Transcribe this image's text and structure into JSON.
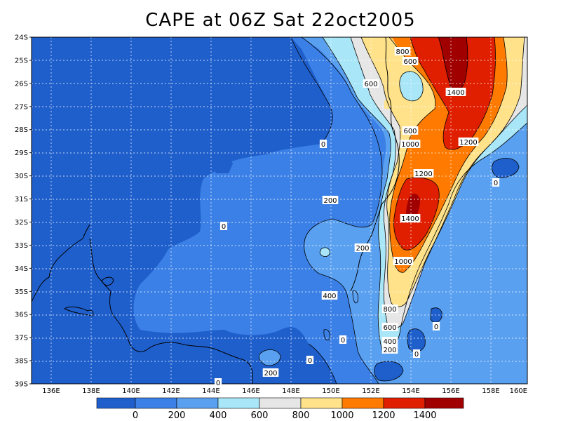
{
  "title": "CAPE at 06Z Sat 22oct2005",
  "colors": {
    "lvl0": "#1f5fcc",
    "lvl1": "#3b80e6",
    "lvl2": "#5aa0f0",
    "lvl3": "#a8e6f8",
    "lvl4": "#e6e6e6",
    "lvl5": "#ffe28a",
    "lvl6": "#ff7a00",
    "lvl7": "#e01e00",
    "lvl8": "#a00000"
  },
  "lat_ticks": [
    "24S",
    "25S",
    "26S",
    "27S",
    "28S",
    "29S",
    "30S",
    "31S",
    "32S",
    "33S",
    "34S",
    "35S",
    "36S",
    "37S",
    "38S",
    "39S"
  ],
  "lon_ticks": [
    "136E",
    "138E",
    "140E",
    "142E",
    "144E",
    "146E",
    "148E",
    "150E",
    "152E",
    "154E",
    "156E",
    "158E",
    "160E"
  ],
  "contour_labels": [
    {
      "text": "800"
    },
    {
      "text": "600"
    },
    {
      "text": "600"
    },
    {
      "text": "1400"
    },
    {
      "text": "600"
    },
    {
      "text": "1000"
    },
    {
      "text": "1200"
    },
    {
      "text": "0"
    },
    {
      "text": "1200"
    },
    {
      "text": "0"
    },
    {
      "text": "200"
    },
    {
      "text": "1400"
    },
    {
      "text": "0"
    },
    {
      "text": "200"
    },
    {
      "text": "1000"
    },
    {
      "text": "400"
    },
    {
      "text": "800"
    },
    {
      "text": "600"
    },
    {
      "text": "400"
    },
    {
      "text": "0"
    },
    {
      "text": "200"
    },
    {
      "text": "0"
    },
    {
      "text": "0"
    },
    {
      "text": "0"
    },
    {
      "text": "200"
    },
    {
      "text": "0"
    }
  ],
  "colorbar": {
    "labels": [
      "0",
      "200",
      "400",
      "600",
      "800",
      "1000",
      "1200",
      "1400"
    ]
  }
}
